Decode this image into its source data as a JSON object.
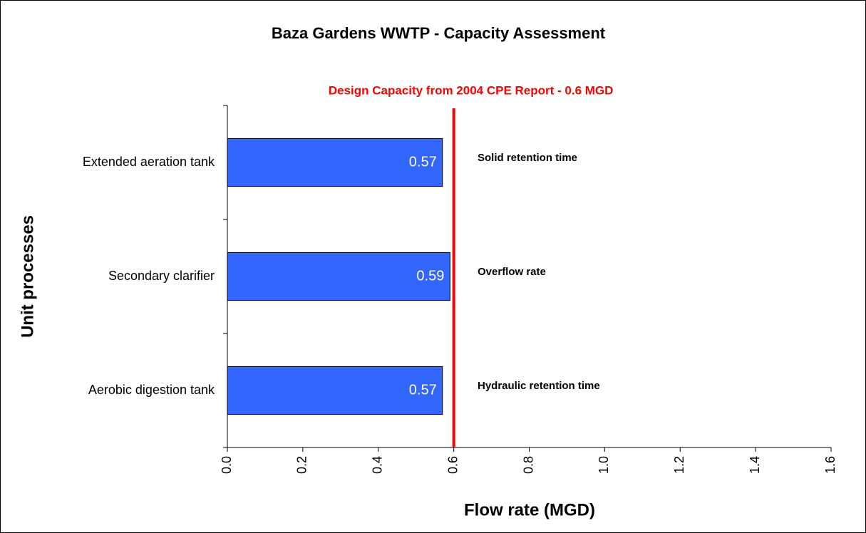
{
  "chart_data": {
    "type": "bar",
    "orientation": "horizontal",
    "title": "Baza Gardens WWTP - Capacity Assessment",
    "x_label": "Flow rate (MGD)",
    "y_label": "Unit processes",
    "categories": [
      "Extended aeration tank",
      "Secondary clarifier",
      "Aerobic digestion tank"
    ],
    "values": [
      0.57,
      0.59,
      0.57
    ],
    "annotations": [
      "Solid retention time",
      "Overflow rate",
      "Hydraulic retention time"
    ],
    "color": "#3366ff",
    "reference_line": {
      "value": 0.6,
      "label": "Design Capacity from 2004 CPE Report - 0.6 MGD",
      "color": "#ff0000"
    },
    "xlim": [
      0,
      1.6
    ],
    "xticks": [
      {
        "value": 0,
        "label": "0.0"
      },
      0.2,
      0.4,
      0.6,
      0.8,
      {
        "value": 1,
        "label": "1.0"
      },
      1.2,
      1.4,
      1.6
    ]
  }
}
